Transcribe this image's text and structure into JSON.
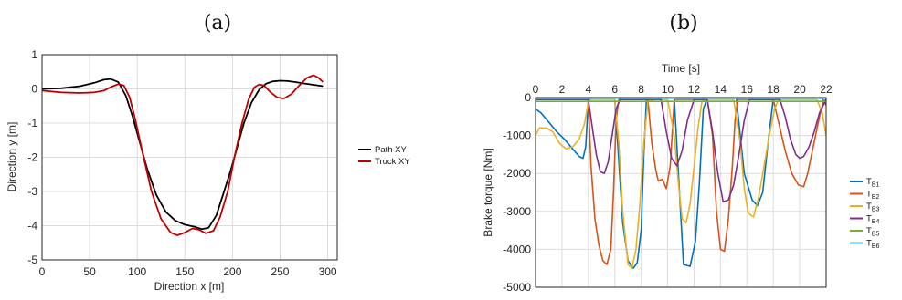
{
  "chart_data": [
    {
      "panel_label": "(a)",
      "type": "line",
      "xlabel": "Direction x [m]",
      "ylabel": "Direction y [m]",
      "xlim": [
        0,
        310
      ],
      "ylim": [
        -5,
        1
      ],
      "xticks": [
        0,
        50,
        100,
        150,
        200,
        250,
        300
      ],
      "yticks": [
        1,
        0,
        -1,
        -2,
        -3,
        -4,
        -5
      ],
      "grid": true,
      "legend": "right",
      "series": [
        {
          "name": "Path XY",
          "color": "#000000",
          "x": [
            0,
            20,
            40,
            55,
            65,
            72,
            80,
            88,
            95,
            102,
            110,
            120,
            130,
            140,
            150,
            160,
            168,
            175,
            183,
            190,
            198,
            205,
            212,
            220,
            228,
            235,
            242,
            250,
            258,
            266,
            275,
            285,
            295
          ],
          "y": [
            0,
            0.02,
            0.08,
            0.18,
            0.27,
            0.29,
            0.2,
            -0.2,
            -0.8,
            -1.5,
            -2.3,
            -3.1,
            -3.6,
            -3.85,
            -3.97,
            -4.03,
            -4.1,
            -4.06,
            -3.7,
            -3.1,
            -2.4,
            -1.7,
            -1.0,
            -0.4,
            -0.02,
            0.15,
            0.22,
            0.24,
            0.23,
            0.2,
            0.16,
            0.12,
            0.08
          ]
        },
        {
          "name": "Truck XY",
          "color": "#c00000",
          "x": [
            0,
            20,
            40,
            55,
            65,
            72,
            80,
            86,
            92,
            98,
            105,
            115,
            125,
            135,
            142,
            150,
            158,
            165,
            172,
            180,
            187,
            195,
            202,
            210,
            217,
            223,
            228,
            233,
            240,
            247,
            254,
            262,
            270,
            278,
            285,
            290,
            295
          ],
          "y": [
            -0.05,
            -0.1,
            -0.12,
            -0.1,
            -0.05,
            0.05,
            0.14,
            0.1,
            -0.25,
            -0.9,
            -1.8,
            -3.0,
            -3.8,
            -4.2,
            -4.28,
            -4.2,
            -4.08,
            -4.12,
            -4.22,
            -4.15,
            -3.75,
            -3.0,
            -2.0,
            -1.0,
            -0.3,
            0.05,
            0.13,
            0.1,
            -0.1,
            -0.25,
            -0.28,
            -0.15,
            0.1,
            0.32,
            0.4,
            0.33,
            0.2
          ]
        }
      ]
    },
    {
      "panel_label": "(b)",
      "type": "line",
      "xlabel": "Time [s]",
      "ylabel": "Brake torque [Nm]",
      "xaxis_position": "top",
      "xlim": [
        0,
        22
      ],
      "ylim": [
        -5000,
        0
      ],
      "xticks": [
        0,
        2,
        4,
        6,
        8,
        10,
        12,
        14,
        16,
        18,
        20,
        22
      ],
      "yticks": [
        0,
        -1000,
        -2000,
        -3000,
        -4000,
        -5000
      ],
      "grid": true,
      "legend": "right",
      "series": [
        {
          "name": "TB1",
          "color": "#0072bd",
          "x": [
            0,
            0.4,
            1,
            1.6,
            2.2,
            2.8,
            3.3,
            3.6,
            3.8,
            4.0,
            4.3,
            4.8,
            5.4,
            6.0,
            6.6,
            7.0,
            7.4,
            7.7,
            8.0,
            8.2,
            8.4,
            8.7,
            9.2,
            9.8,
            10.5,
            11.2,
            11.7,
            12.1,
            12.4,
            12.7,
            13.0,
            13.4,
            14.0,
            14.6,
            15.2,
            15.8,
            16.4,
            16.8,
            17.2,
            17.6,
            18.0,
            18.3,
            18.7,
            19.5,
            20.5,
            21.3,
            21.7,
            22.0
          ],
          "y": [
            -300,
            -400,
            -650,
            -900,
            -1100,
            -1350,
            -1550,
            -1600,
            -1300,
            -50,
            -20,
            -20,
            -20,
            -20,
            -3300,
            -4300,
            -4500,
            -4350,
            -3500,
            -1500,
            -30,
            -20,
            -20,
            -20,
            -20,
            -4400,
            -4450,
            -3800,
            -2300,
            -300,
            -20,
            -20,
            -20,
            -20,
            -20,
            -2000,
            -2700,
            -2850,
            -2500,
            -1200,
            -20,
            -20,
            -20,
            -20,
            -20,
            -20,
            -20,
            -200
          ]
        },
        {
          "name": "TB2",
          "color": "#d95319",
          "x": [
            0,
            1,
            2,
            3,
            4.0,
            4.2,
            4.5,
            4.8,
            5.1,
            5.4,
            5.7,
            5.9,
            6.1,
            6.3,
            6.6,
            7,
            8,
            8.5,
            8.8,
            9.1,
            9.3,
            9.6,
            9.9,
            10.2,
            10.5,
            11,
            12,
            13,
            13.4,
            13.7,
            14.0,
            14.3,
            14.6,
            14.9,
            15.1,
            15.3,
            15.6,
            16,
            17,
            18,
            18.5,
            18.9,
            19.4,
            19.9,
            20.3,
            20.6,
            20.9,
            21.2,
            21.5,
            21.8,
            22.0
          ],
          "y": [
            -50,
            -50,
            -50,
            -50,
            -50,
            -1800,
            -3200,
            -3900,
            -4300,
            -4400,
            -4000,
            -2500,
            -600,
            -50,
            -50,
            -50,
            -50,
            -50,
            -1200,
            -1900,
            -2200,
            -2150,
            -2400,
            -1800,
            -50,
            -50,
            -50,
            -50,
            -1000,
            -3000,
            -4000,
            -4050,
            -3200,
            -1800,
            -600,
            -50,
            -50,
            -50,
            -50,
            -50,
            -800,
            -1400,
            -2000,
            -2300,
            -2350,
            -2000,
            -1500,
            -1000,
            -500,
            -100,
            -50
          ]
        },
        {
          "name": "TB3",
          "color": "#edb120",
          "x": [
            0,
            0.3,
            0.8,
            1.3,
            1.8,
            2.3,
            2.8,
            3.3,
            3.7,
            4.0,
            4.2,
            5,
            6,
            6.3,
            6.6,
            7.0,
            7.3,
            7.6,
            7.9,
            8.2,
            8.5,
            9,
            10,
            10.5,
            10.8,
            11.1,
            11.4,
            11.7,
            12.0,
            12.3,
            12.6,
            12.9,
            13.2,
            14,
            15,
            15.5,
            15.8,
            16.1,
            16.5,
            16.9,
            17.3,
            17.7,
            18.1,
            18.4,
            19,
            20,
            20.5,
            20.9,
            21.3,
            21.7,
            22.0
          ],
          "y": [
            -1000,
            -800,
            -800,
            -900,
            -1200,
            -1350,
            -1300,
            -1100,
            -700,
            -100,
            -50,
            -50,
            -50,
            -1200,
            -3000,
            -4400,
            -4500,
            -4000,
            -2800,
            -1200,
            -100,
            -50,
            -50,
            -1000,
            -2200,
            -3200,
            -3300,
            -2800,
            -1800,
            -800,
            -100,
            -50,
            -50,
            -50,
            -50,
            -1200,
            -2400,
            -3050,
            -3150,
            -2600,
            -1800,
            -1000,
            -300,
            -50,
            -50,
            -50,
            -50,
            -50,
            -50,
            -400,
            -1000
          ]
        },
        {
          "name": "TB4",
          "color": "#7e2f8e",
          "x": [
            0,
            1,
            2,
            3,
            3.8,
            4.0,
            4.3,
            4.6,
            4.9,
            5.2,
            5.5,
            5.8,
            6.1,
            6.4,
            7,
            8,
            9,
            9.5,
            9.9,
            10.3,
            10.7,
            11.1,
            11.5,
            12,
            13,
            13.4,
            13.8,
            14.2,
            14.6,
            15.0,
            15.4,
            15.8,
            16.2,
            17,
            18,
            18.5,
            18.9,
            19.3,
            19.7,
            20.0,
            20.3,
            20.7,
            21.1,
            21.5,
            22.0
          ],
          "y": [
            -50,
            -50,
            -50,
            -50,
            -50,
            -50,
            -800,
            -1500,
            -1950,
            -2000,
            -1700,
            -1000,
            -300,
            -50,
            -50,
            -50,
            -50,
            -50,
            -900,
            -1600,
            -1800,
            -1400,
            -600,
            -50,
            -50,
            -900,
            -2000,
            -2750,
            -2700,
            -2300,
            -1500,
            -600,
            -50,
            -50,
            -50,
            -50,
            -500,
            -1100,
            -1500,
            -1600,
            -1550,
            -1300,
            -900,
            -400,
            -50
          ]
        },
        {
          "name": "TB5",
          "color": "#77ac30",
          "x": [
            0,
            22
          ],
          "y": [
            -100,
            -100
          ]
        },
        {
          "name": "TB6",
          "color": "#4dbeee",
          "x": [
            0,
            22
          ],
          "y": [
            -20,
            -20
          ]
        }
      ]
    }
  ]
}
